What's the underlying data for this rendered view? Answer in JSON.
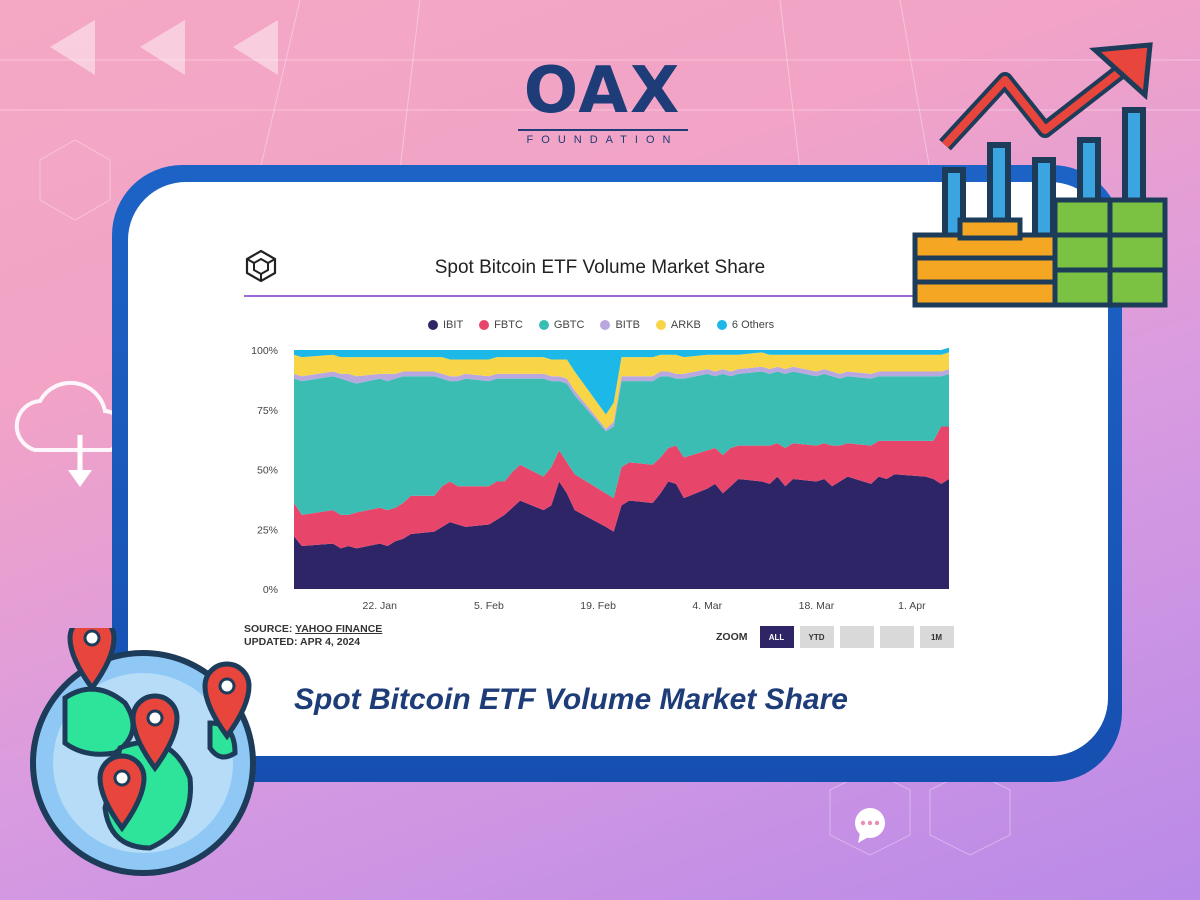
{
  "brand": {
    "name": "OAX",
    "sub": "FOUNDATION",
    "color": "#1d3c78"
  },
  "card": {
    "caption": "Spot Bitcoin ETF Volume Market Share",
    "frame_color": "#1d63c6"
  },
  "chart_data": {
    "type": "area",
    "stacked": true,
    "normalized": true,
    "title": "Spot Bitcoin ETF Volume Market Share",
    "y_ticks": [
      "100%",
      "75%",
      "50%",
      "25%",
      "0%"
    ],
    "ylim": [
      0,
      100
    ],
    "x_ticks": [
      "22. Jan",
      "5. Feb",
      "19. Feb",
      "4. Mar",
      "18. Mar",
      "1. Apr"
    ],
    "x_tick_dates": [
      "2024-01-22",
      "2024-02-05",
      "2024-02-19",
      "2024-03-04",
      "2024-03-18",
      "2024-04-01"
    ],
    "x": [
      "2024-01-11",
      "2024-01-12",
      "2024-01-16",
      "2024-01-17",
      "2024-01-18",
      "2024-01-19",
      "2024-01-22",
      "2024-01-23",
      "2024-01-24",
      "2024-01-25",
      "2024-01-26",
      "2024-01-29",
      "2024-01-30",
      "2024-01-31",
      "2024-02-01",
      "2024-02-02",
      "2024-02-05",
      "2024-02-06",
      "2024-02-07",
      "2024-02-08",
      "2024-02-09",
      "2024-02-12",
      "2024-02-13",
      "2024-02-14",
      "2024-02-15",
      "2024-02-16",
      "2024-02-20",
      "2024-02-21",
      "2024-02-22",
      "2024-02-23",
      "2024-02-26",
      "2024-02-27",
      "2024-02-28",
      "2024-02-29",
      "2024-03-01",
      "2024-03-04",
      "2024-03-05",
      "2024-03-06",
      "2024-03-07",
      "2024-03-08",
      "2024-03-11",
      "2024-03-12",
      "2024-03-13",
      "2024-03-14",
      "2024-03-15",
      "2024-03-18",
      "2024-03-19",
      "2024-03-20",
      "2024-03-21",
      "2024-03-22",
      "2024-03-25",
      "2024-03-26",
      "2024-03-27",
      "2024-03-28",
      "2024-04-01",
      "2024-04-02",
      "2024-04-03",
      "2024-04-04"
    ],
    "series": [
      {
        "name": "IBIT",
        "color": "#2d2566",
        "values": [
          22,
          18,
          19,
          17,
          18,
          17,
          19,
          18,
          20,
          21,
          23,
          24,
          26,
          28,
          27,
          26,
          27,
          29,
          31,
          34,
          37,
          33,
          35,
          45,
          40,
          33,
          26,
          24,
          35,
          37,
          36,
          40,
          45,
          44,
          38,
          42,
          44,
          40,
          43,
          46,
          45,
          44,
          47,
          43,
          46,
          45,
          46,
          43,
          45,
          47,
          44,
          47,
          46,
          48,
          47,
          46,
          44,
          46
        ]
      },
      {
        "name": "FBTC",
        "color": "#e8456a",
        "values": [
          14,
          13,
          14,
          14,
          13,
          15,
          15,
          15,
          14,
          15,
          16,
          15,
          17,
          17,
          16,
          17,
          16,
          16,
          14,
          15,
          15,
          14,
          16,
          13,
          13,
          15,
          14,
          14,
          16,
          16,
          16,
          15,
          14,
          16,
          17,
          16,
          15,
          16,
          16,
          14,
          15,
          16,
          14,
          16,
          15,
          15,
          15,
          17,
          15,
          14,
          16,
          15,
          16,
          14,
          15,
          16,
          24,
          22
        ]
      },
      {
        "name": "GBTC",
        "color": "#3bbdb3",
        "values": [
          52,
          56,
          56,
          57,
          56,
          54,
          54,
          54,
          54,
          53,
          50,
          50,
          45,
          42,
          44,
          45,
          44,
          43,
          43,
          39,
          36,
          41,
          36,
          29,
          33,
          33,
          26,
          30,
          36,
          34,
          35,
          34,
          30,
          28,
          33,
          32,
          30,
          34,
          30,
          30,
          31,
          30,
          30,
          31,
          30,
          29,
          29,
          29,
          28,
          28,
          28,
          27,
          27,
          27,
          27,
          27,
          21,
          22
        ]
      },
      {
        "name": "BITB",
        "color": "#b9a8e0",
        "values": [
          2,
          2,
          2,
          2,
          3,
          3,
          2,
          3,
          2,
          2,
          2,
          2,
          2,
          2,
          2,
          2,
          2,
          2,
          2,
          2,
          2,
          2,
          2,
          2,
          2,
          2,
          1,
          2,
          2,
          2,
          2,
          2,
          2,
          2,
          2,
          2,
          2,
          2,
          2,
          2,
          2,
          2,
          2,
          2,
          2,
          2,
          2,
          2,
          2,
          2,
          2,
          2,
          2,
          2,
          2,
          2,
          2,
          2
        ]
      },
      {
        "name": "ARKB",
        "color": "#f8d547",
        "values": [
          8,
          8,
          7,
          7,
          7,
          8,
          7,
          7,
          7,
          6,
          6,
          6,
          7,
          7,
          7,
          6,
          7,
          7,
          7,
          7,
          7,
          7,
          7,
          7,
          8,
          8,
          6,
          8,
          8,
          8,
          8,
          7,
          7,
          8,
          7,
          6,
          7,
          6,
          7,
          6,
          6,
          6,
          5,
          6,
          5,
          7,
          6,
          7,
          8,
          7,
          8,
          7,
          7,
          7,
          7,
          7,
          7,
          7
        ]
      },
      {
        "name": "6 Others",
        "color": "#1cb8e8",
        "values": [
          2,
          3,
          2,
          3,
          3,
          3,
          3,
          3,
          3,
          3,
          3,
          3,
          3,
          4,
          4,
          4,
          4,
          3,
          3,
          3,
          3,
          3,
          4,
          4,
          4,
          9,
          27,
          22,
          3,
          3,
          3,
          2,
          2,
          2,
          3,
          2,
          2,
          2,
          2,
          2,
          1,
          2,
          2,
          2,
          2,
          2,
          2,
          2,
          2,
          2,
          2,
          2,
          2,
          2,
          2,
          2,
          2,
          2
        ]
      }
    ],
    "grid": false,
    "legend": "top-center",
    "source_prefix": "SOURCE: ",
    "source_link": "YAHOO FINANCE",
    "updated": "UPDATED: APR 4, 2024",
    "zoom_label": "ZOOM",
    "zoom_buttons": [
      "ALL",
      "YTD",
      "",
      "",
      "1M"
    ],
    "zoom_active": "ALL"
  }
}
